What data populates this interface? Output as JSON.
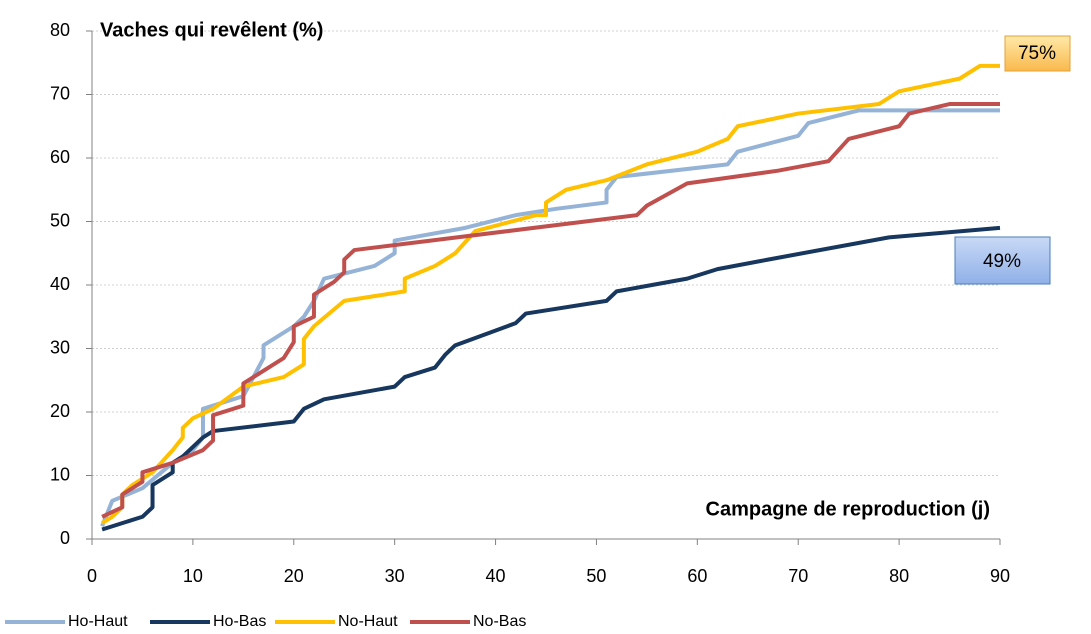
{
  "chart_data": {
    "type": "line",
    "y_label": "Vaches qui revêlent (%)",
    "x_label": "Campagne de reproduction (j)",
    "xlim": [
      0,
      90
    ],
    "xticks": [
      0,
      10,
      20,
      30,
      40,
      50,
      60,
      70,
      80,
      90
    ],
    "ylim": [
      0,
      80
    ],
    "yticks": [
      0,
      10,
      20,
      30,
      40,
      50,
      60,
      70,
      80
    ],
    "grid": true,
    "legend": "bottom",
    "annotations": [
      "75%",
      "49%"
    ],
    "series": [
      {
        "name": "Ho-Haut",
        "color": "#95b3d7",
        "x": [
          1,
          2,
          5,
          8,
          10,
          11,
          11,
          15,
          17,
          17,
          20,
          21,
          22,
          23,
          28,
          30,
          30,
          37,
          42,
          46,
          51,
          51,
          52,
          63,
          64,
          70,
          71,
          76,
          90
        ],
        "values": [
          2,
          6,
          8,
          12,
          14,
          16,
          20.5,
          22.5,
          28.5,
          30.5,
          33.5,
          35,
          37.5,
          41,
          43,
          45,
          47,
          49,
          51,
          52,
          53,
          55,
          57,
          59,
          61,
          63.5,
          65.5,
          67.5,
          67.5
        ]
      },
      {
        "name": "Ho-Bas",
        "color": "#17375e",
        "x": [
          1,
          5,
          6,
          6,
          7,
          8,
          8,
          9,
          11,
          12,
          20,
          21,
          23,
          30,
          31,
          34,
          35,
          36,
          42,
          43,
          51,
          52,
          59,
          62,
          67,
          79,
          90
        ],
        "values": [
          1.5,
          3.5,
          5,
          8.5,
          9.5,
          10.5,
          12,
          13,
          16,
          17,
          18.5,
          20.5,
          22,
          24,
          25.5,
          27,
          29,
          30.5,
          34,
          35.5,
          37.5,
          39,
          41,
          42.5,
          44,
          47.5,
          49
        ]
      },
      {
        "name": "No-Haut",
        "color": "#ffc000",
        "x": [
          1,
          2,
          3,
          3,
          4,
          6,
          8,
          9,
          9,
          10,
          12,
          15,
          19,
          21,
          21,
          22,
          25,
          31,
          31,
          34,
          36,
          38,
          44,
          45,
          45,
          47,
          51,
          55,
          60,
          63,
          64,
          70,
          78,
          80,
          86,
          88,
          90
        ],
        "values": [
          2.5,
          3.5,
          5,
          7,
          8.5,
          10.5,
          14,
          16,
          17.5,
          19,
          20.5,
          24,
          25.5,
          27.5,
          31.5,
          33.5,
          37.5,
          39,
          41,
          43,
          45,
          48.5,
          51,
          51,
          53,
          55,
          56.5,
          59,
          61,
          63,
          65,
          67,
          68.5,
          70.5,
          72.5,
          74.5,
          74.5
        ]
      },
      {
        "name": "No-Bas",
        "color": "#c0504d",
        "x": [
          1,
          3,
          3,
          5,
          5,
          8,
          11,
          12,
          12,
          15,
          15,
          19,
          20,
          20,
          22,
          22,
          24,
          25,
          25,
          26,
          54,
          55,
          59,
          68,
          73,
          75,
          80,
          81,
          85,
          90
        ],
        "values": [
          3.5,
          5,
          7,
          9,
          10.5,
          12,
          14,
          15.5,
          19.5,
          21,
          24.5,
          28.5,
          31,
          33.5,
          35,
          38.5,
          40.5,
          42,
          44,
          45.5,
          51,
          52.5,
          56,
          58,
          59.5,
          63,
          65,
          67,
          68.5,
          68.5
        ]
      }
    ]
  }
}
